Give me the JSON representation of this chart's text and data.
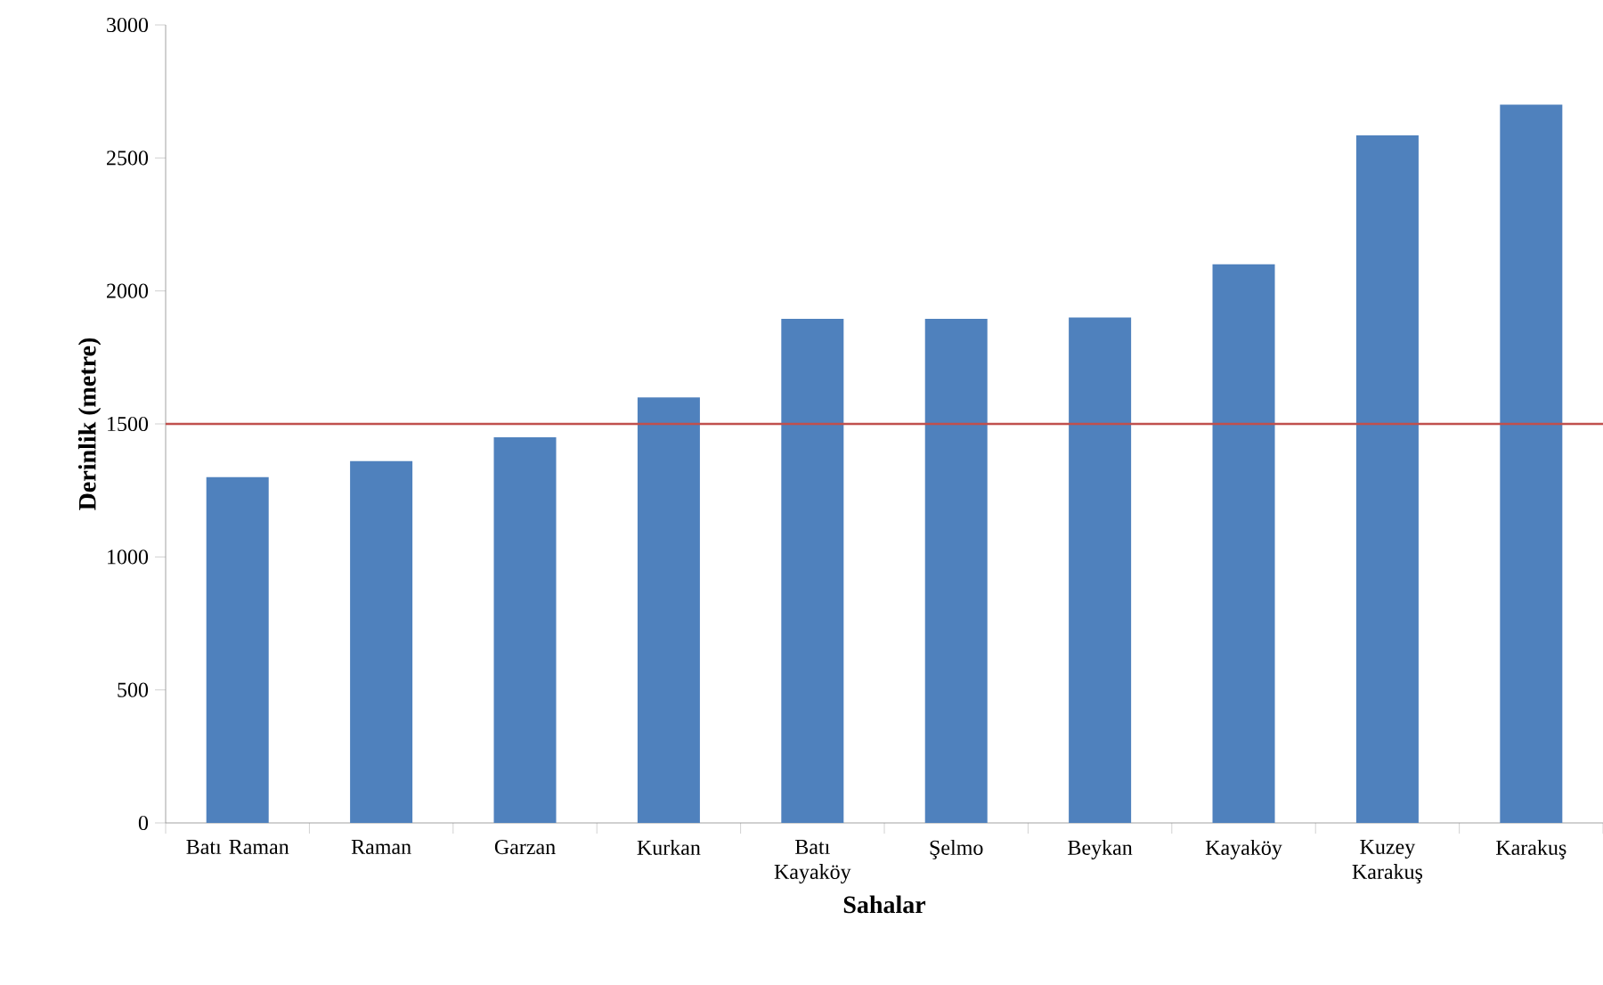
{
  "chart_data": {
    "type": "bar",
    "xlabel": "Sahalar",
    "ylabel": "Derinlik (metre)",
    "categories": [
      "Batı Raman",
      "Raman",
      "Garzan",
      "Kurkan",
      "Batı Kayaköy",
      "Şelmo",
      "Beykan",
      "Kayaköy",
      "Kuzey Karakuş",
      "Karakuş"
    ],
    "values": [
      1300,
      1360,
      1450,
      1600,
      1895,
      1895,
      1900,
      2100,
      2585,
      2700
    ],
    "color": "#4f81bd",
    "ylim": [
      0,
      3000
    ],
    "yticks": [
      0,
      500,
      1000,
      1500,
      2000,
      2500,
      3000
    ],
    "ref_lines": [
      {
        "axis": "y",
        "value": 1500,
        "color": "#c0504d"
      }
    ]
  }
}
